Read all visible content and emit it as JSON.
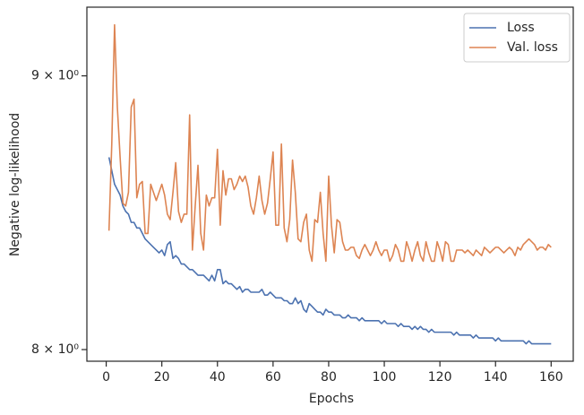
{
  "chart_data": {
    "type": "line",
    "xlabel": "Epochs",
    "ylabel": "Negative log-likelihood",
    "yscale": "log",
    "legend": "upper right",
    "grid": false,
    "xlim": [
      -6.95,
      167.95
    ],
    "ylim": [
      7.96,
      9.27
    ],
    "xticks": [
      0,
      20,
      40,
      60,
      80,
      100,
      120,
      140,
      160
    ],
    "yticks": [
      {
        "value": 8,
        "label": "8 × 10⁰"
      },
      {
        "value": 9,
        "label": "9 × 10⁰"
      }
    ],
    "x": [
      1,
      2,
      3,
      4,
      5,
      6,
      7,
      8,
      9,
      10,
      11,
      12,
      13,
      14,
      15,
      16,
      17,
      18,
      19,
      20,
      21,
      22,
      23,
      24,
      25,
      26,
      27,
      28,
      29,
      30,
      31,
      32,
      33,
      34,
      35,
      36,
      37,
      38,
      39,
      40,
      41,
      42,
      43,
      44,
      45,
      46,
      47,
      48,
      49,
      50,
      51,
      52,
      53,
      54,
      55,
      56,
      57,
      58,
      59,
      60,
      61,
      62,
      63,
      64,
      65,
      66,
      67,
      68,
      69,
      70,
      71,
      72,
      73,
      74,
      75,
      76,
      77,
      78,
      79,
      80,
      81,
      82,
      83,
      84,
      85,
      86,
      87,
      88,
      89,
      90,
      91,
      92,
      93,
      94,
      95,
      96,
      97,
      98,
      99,
      100,
      101,
      102,
      103,
      104,
      105,
      106,
      107,
      108,
      109,
      110,
      111,
      112,
      113,
      114,
      115,
      116,
      117,
      118,
      119,
      120,
      121,
      122,
      123,
      124,
      125,
      126,
      127,
      128,
      129,
      130,
      131,
      132,
      133,
      134,
      135,
      136,
      137,
      138,
      139,
      140,
      141,
      142,
      143,
      144,
      145,
      146,
      147,
      148,
      149,
      150,
      151,
      152,
      153,
      154,
      155,
      156,
      157,
      158,
      159,
      160
    ],
    "series": [
      {
        "name": "Loss",
        "color": "#4c72b0",
        "values": [
          8.69,
          8.64,
          8.59,
          8.57,
          8.55,
          8.51,
          8.49,
          8.48,
          8.45,
          8.45,
          8.43,
          8.43,
          8.41,
          8.39,
          8.38,
          8.37,
          8.36,
          8.35,
          8.34,
          8.35,
          8.33,
          8.37,
          8.38,
          8.32,
          8.33,
          8.32,
          8.3,
          8.3,
          8.29,
          8.28,
          8.28,
          8.27,
          8.26,
          8.26,
          8.26,
          8.25,
          8.24,
          8.26,
          8.24,
          8.28,
          8.28,
          8.23,
          8.24,
          8.23,
          8.23,
          8.22,
          8.21,
          8.22,
          8.2,
          8.21,
          8.21,
          8.2,
          8.2,
          8.2,
          8.2,
          8.21,
          8.19,
          8.19,
          8.2,
          8.19,
          8.18,
          8.18,
          8.18,
          8.17,
          8.17,
          8.16,
          8.16,
          8.18,
          8.16,
          8.17,
          8.14,
          8.13,
          8.16,
          8.15,
          8.14,
          8.13,
          8.13,
          8.12,
          8.14,
          8.13,
          8.13,
          8.12,
          8.12,
          8.12,
          8.11,
          8.11,
          8.12,
          8.11,
          8.11,
          8.11,
          8.1,
          8.11,
          8.1,
          8.1,
          8.1,
          8.1,
          8.1,
          8.1,
          8.09,
          8.1,
          8.09,
          8.09,
          8.09,
          8.09,
          8.08,
          8.09,
          8.08,
          8.08,
          8.08,
          8.07,
          8.08,
          8.07,
          8.08,
          8.07,
          8.07,
          8.06,
          8.07,
          8.06,
          8.06,
          8.06,
          8.06,
          8.06,
          8.06,
          8.06,
          8.05,
          8.06,
          8.05,
          8.05,
          8.05,
          8.05,
          8.05,
          8.04,
          8.05,
          8.04,
          8.04,
          8.04,
          8.04,
          8.04,
          8.04,
          8.03,
          8.04,
          8.03,
          8.03,
          8.03,
          8.03,
          8.03,
          8.03,
          8.03,
          8.03,
          8.03,
          8.02,
          8.03,
          8.02,
          8.02,
          8.02,
          8.02,
          8.02,
          8.02,
          8.02,
          8.02
        ]
      },
      {
        "name": "Val. loss",
        "color": "#dd8452",
        "values": [
          8.42,
          8.74,
          9.2,
          8.88,
          8.69,
          8.52,
          8.51,
          8.56,
          8.88,
          8.91,
          8.54,
          8.59,
          8.6,
          8.41,
          8.41,
          8.59,
          8.56,
          8.53,
          8.56,
          8.59,
          8.55,
          8.48,
          8.46,
          8.56,
          8.67,
          8.49,
          8.45,
          8.48,
          8.48,
          8.85,
          8.35,
          8.51,
          8.66,
          8.41,
          8.35,
          8.55,
          8.51,
          8.54,
          8.54,
          8.72,
          8.44,
          8.64,
          8.55,
          8.61,
          8.61,
          8.57,
          8.59,
          8.62,
          8.6,
          8.62,
          8.58,
          8.51,
          8.48,
          8.54,
          8.62,
          8.53,
          8.48,
          8.52,
          8.61,
          8.71,
          8.44,
          8.44,
          8.74,
          8.43,
          8.38,
          8.46,
          8.68,
          8.56,
          8.39,
          8.38,
          8.45,
          8.48,
          8.35,
          8.31,
          8.46,
          8.45,
          8.56,
          8.41,
          8.31,
          8.62,
          8.44,
          8.34,
          8.46,
          8.45,
          8.38,
          8.35,
          8.35,
          8.36,
          8.36,
          8.33,
          8.32,
          8.35,
          8.37,
          8.35,
          8.33,
          8.35,
          8.38,
          8.35,
          8.33,
          8.35,
          8.35,
          8.31,
          8.33,
          8.37,
          8.35,
          8.31,
          8.31,
          8.38,
          8.35,
          8.31,
          8.35,
          8.38,
          8.33,
          8.31,
          8.38,
          8.34,
          8.31,
          8.31,
          8.38,
          8.35,
          8.31,
          8.38,
          8.37,
          8.31,
          8.31,
          8.35,
          8.35,
          8.35,
          8.34,
          8.35,
          8.34,
          8.33,
          8.35,
          8.34,
          8.33,
          8.36,
          8.35,
          8.34,
          8.35,
          8.36,
          8.36,
          8.35,
          8.34,
          8.35,
          8.36,
          8.35,
          8.33,
          8.36,
          8.35,
          8.37,
          8.38,
          8.39,
          8.38,
          8.37,
          8.35,
          8.36,
          8.36,
          8.35,
          8.37,
          8.36
        ]
      }
    ]
  }
}
